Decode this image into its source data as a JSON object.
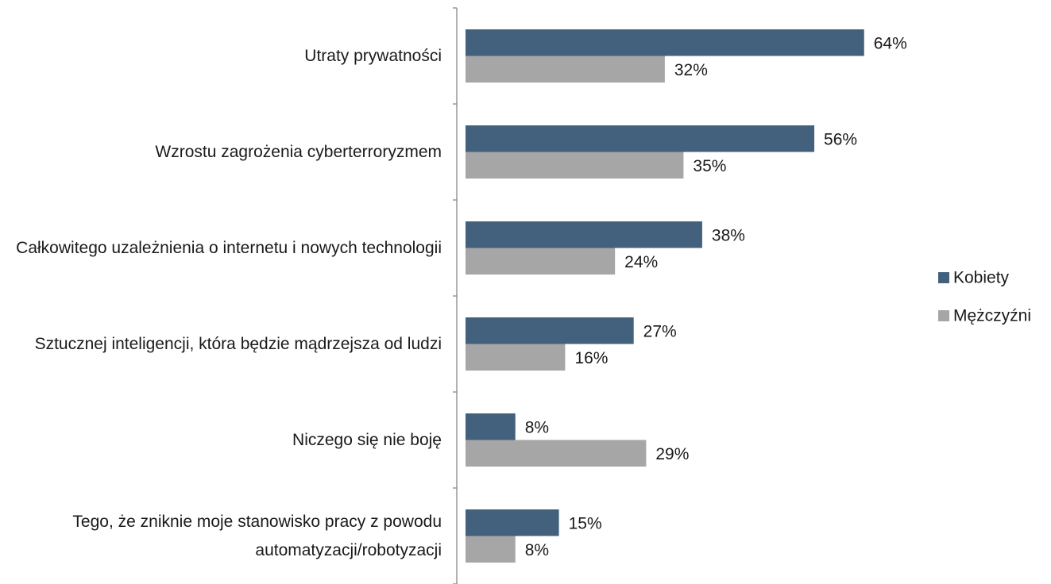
{
  "chart_data": {
    "type": "hbar",
    "categories": [
      "Utraty prywatności",
      "Wzrostu zagrożenia cyberterroryzmem",
      "Całkowitego uzależnienia o internetu i nowych technologii",
      "Sztucznej inteligencji, która będzie mądrzejsza od ludzi",
      "Niczego się nie boję",
      "Tego, że zniknie moje stanowisko pracy z powodu automatyzacji/robotyzacji"
    ],
    "series": [
      {
        "name": "Kobiety",
        "color": "#43607c",
        "values": [
          64,
          56,
          38,
          27,
          8,
          15
        ],
        "value_labels": [
          "64%",
          "56%",
          "38%",
          "27%",
          "8%",
          "15%"
        ]
      },
      {
        "name": "Mężczyźni",
        "color": "#a6a6a6",
        "values": [
          32,
          35,
          24,
          16,
          29,
          8
        ],
        "value_labels": [
          "32%",
          "35%",
          "24%",
          "16%",
          "29%",
          "8%"
        ]
      }
    ],
    "legend": "right"
  }
}
